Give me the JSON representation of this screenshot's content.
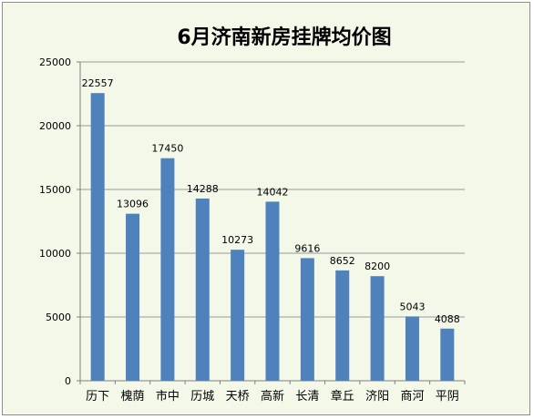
{
  "chart_data": {
    "type": "bar",
    "title": "6月济南新房挂牌均价图",
    "categories": [
      "历下",
      "槐荫",
      "市中",
      "历城",
      "天桥",
      "高新",
      "长清",
      "章丘",
      "济阳",
      "商河",
      "平阴"
    ],
    "values": [
      22557,
      13096,
      17450,
      14288,
      10273,
      14042,
      9616,
      8652,
      8200,
      5043,
      4088
    ],
    "ylim": [
      0,
      25000
    ],
    "yticks": [
      "0",
      "5000",
      "10000",
      "15000",
      "20000",
      "25000"
    ],
    "grid": true,
    "bar_color": "#4f81bd",
    "background_color": "#f3f8e9"
  }
}
